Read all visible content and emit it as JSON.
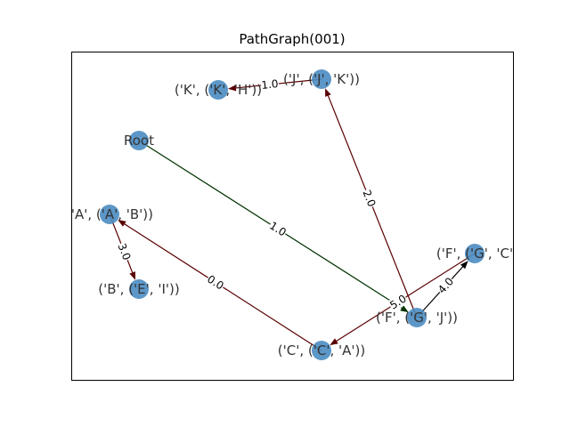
{
  "title": "PathGraph(001)",
  "colors": {
    "node_fill": "#4a8cc2",
    "edge_red": "#5a0000",
    "edge_green": "#003300",
    "edge_black": "#000000",
    "label": "#333333"
  },
  "nodes": [
    {
      "id": "K",
      "label": "('K', ('K', 'H'))"
    },
    {
      "id": "J",
      "label": "('J', ('J', 'K'))"
    },
    {
      "id": "Root",
      "label": "Root"
    },
    {
      "id": "A",
      "label": "('A', ('A', 'B'))"
    },
    {
      "id": "B",
      "label": "('B', ('E', 'I'))"
    },
    {
      "id": "C",
      "label": "('C', ('C', 'A'))"
    },
    {
      "id": "G",
      "label": "('F', ('G', 'J'))"
    },
    {
      "id": "F",
      "label": "('F', ('G', 'C'"
    }
  ],
  "edges": [
    {
      "from": "J",
      "to": "K",
      "label": "1.0",
      "color": "edge_red"
    },
    {
      "from": "G",
      "to": "J",
      "label": "2.0",
      "color": "edge_red"
    },
    {
      "from": "Root",
      "to": "G",
      "label": "1.0",
      "color": "edge_green"
    },
    {
      "from": "A",
      "to": "B",
      "label": "3.0",
      "color": "edge_red"
    },
    {
      "from": "C",
      "to": "A",
      "label": "0.0",
      "color": "edge_red"
    },
    {
      "from": "F",
      "to": "C",
      "label": "5.0",
      "color": "edge_red"
    },
    {
      "from": "G",
      "to": "F",
      "label": "4.0",
      "color": "edge_black"
    }
  ]
}
